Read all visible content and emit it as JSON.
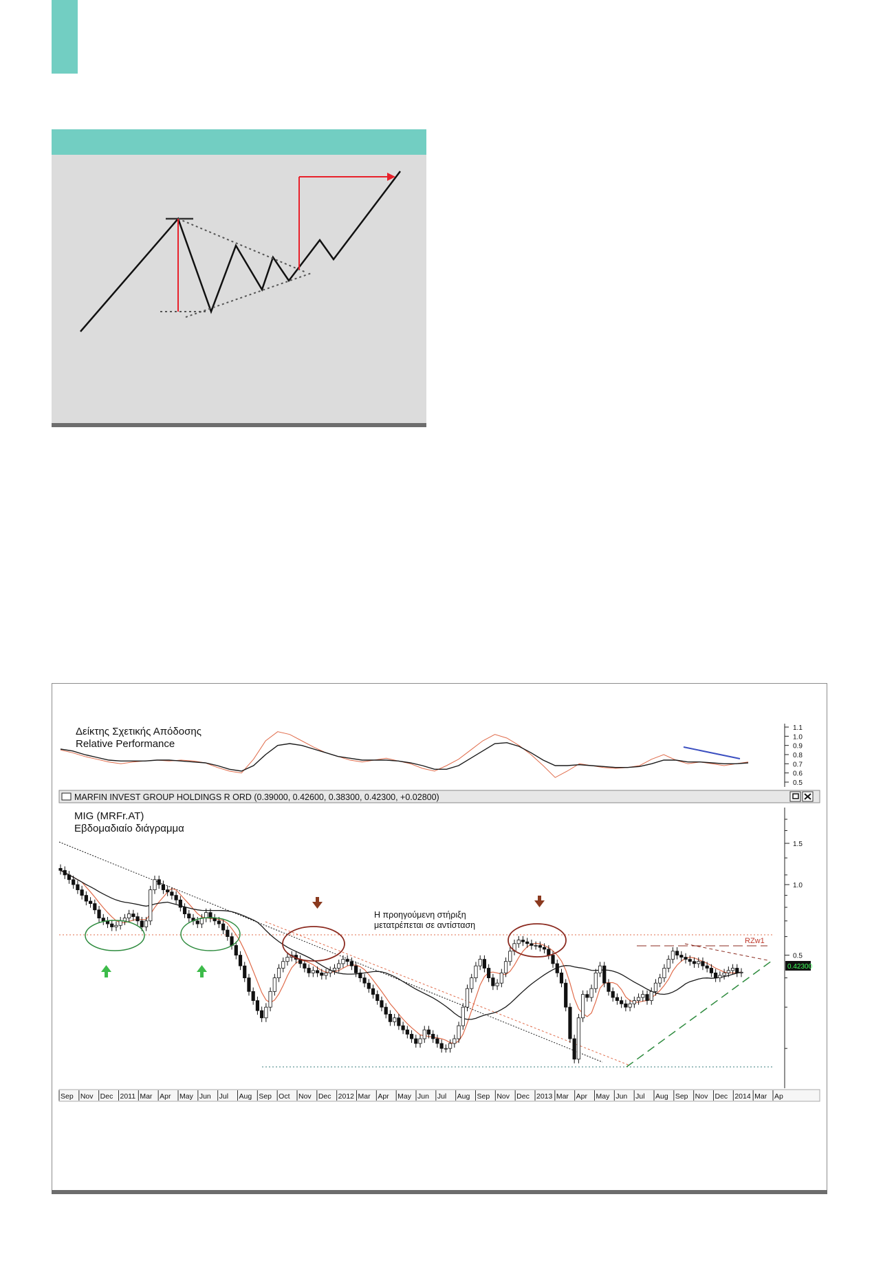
{
  "pattern_figure": {
    "colors": {
      "header": "#72cec2",
      "background": "#dcdcdc",
      "price_line": "#111111",
      "measure": "#e8202a"
    }
  },
  "chart_data": [
    {
      "type": "line",
      "title": "Δείκτης Σχετικής Απόδοσης",
      "subtitle": "Relative Performance",
      "y_ticks": [
        "1.1",
        "1.0",
        "0.9",
        "0.8",
        "0.7",
        "0.6",
        "0.5"
      ],
      "ylim": [
        0.5,
        1.1
      ],
      "series": [
        {
          "values": [
            0.85,
            0.82,
            0.78,
            0.75,
            0.72,
            0.7,
            0.72,
            0.73,
            0.74,
            0.73,
            0.74,
            0.73,
            0.71,
            0.66,
            0.62,
            0.6,
            0.75,
            0.95,
            1.05,
            1.02,
            0.95,
            0.88,
            0.82,
            0.78,
            0.74,
            0.72,
            0.74,
            0.76,
            0.73,
            0.7,
            0.65,
            0.62,
            0.68,
            0.75,
            0.85,
            0.95,
            1.02,
            0.98,
            0.9,
            0.8,
            0.68,
            0.55,
            0.62,
            0.7,
            0.68,
            0.66,
            0.65,
            0.66,
            0.68,
            0.75,
            0.8,
            0.74,
            0.7,
            0.72,
            0.7,
            0.68,
            0.7,
            0.72
          ],
          "color": "#e06b4a"
        },
        {
          "values": [
            0.86,
            0.84,
            0.8,
            0.77,
            0.74,
            0.73,
            0.73,
            0.73,
            0.74,
            0.74,
            0.73,
            0.72,
            0.71,
            0.68,
            0.64,
            0.62,
            0.68,
            0.8,
            0.9,
            0.92,
            0.9,
            0.86,
            0.82,
            0.78,
            0.76,
            0.74,
            0.74,
            0.74,
            0.73,
            0.71,
            0.68,
            0.64,
            0.64,
            0.68,
            0.76,
            0.84,
            0.92,
            0.93,
            0.89,
            0.82,
            0.74,
            0.68,
            0.68,
            0.69,
            0.68,
            0.67,
            0.66,
            0.66,
            0.67,
            0.7,
            0.74,
            0.74,
            0.72,
            0.72,
            0.71,
            0.7,
            0.7,
            0.71
          ],
          "color": "#1a1a1a"
        }
      ],
      "annotation_line_color": "#3b4fc0"
    },
    {
      "type": "candlestick",
      "header": "MARFIN INVEST GROUP HOLDINGS R ORD (0.39000, 0.42600, 0.38300, 0.42300, +0.02800)",
      "title": "MIG (MRFr.AT)",
      "subtitle": "Εβδομαδιαίο διάγραμμα",
      "y_ticks": [
        "1.5",
        "1.0",
        "0.5"
      ],
      "last_price": "0.42300",
      "x_ticks": [
        "Sep",
        "Nov",
        "Dec",
        "2011",
        "Mar",
        "Apr",
        "May",
        "Jun",
        "Jul",
        "Aug",
        "Sep",
        "Oct",
        "Nov",
        "Dec",
        "2012",
        "Mar",
        "Apr",
        "May",
        "Jun",
        "Jul",
        "Aug",
        "Sep",
        "Nov",
        "Dec",
        "2013",
        "Mar",
        "Apr",
        "May",
        "Jun",
        "Jul",
        "Aug",
        "Sep",
        "Nov",
        "Dec",
        "2014",
        "Mar",
        "Ap"
      ],
      "annotation_text_line1": "Η προηγούμενη στήριξη",
      "annotation_text_line2": "μετατρέπεται σε αντίσταση",
      "resistance_label": "RZw1",
      "close_series": [
        1.15,
        1.1,
        1.05,
        1.0,
        0.95,
        0.9,
        0.85,
        0.83,
        0.78,
        0.72,
        0.7,
        0.68,
        0.66,
        0.67,
        0.7,
        0.72,
        0.75,
        0.73,
        0.7,
        0.66,
        0.7,
        0.95,
        1.05,
        1.0,
        0.95,
        0.93,
        0.9,
        0.86,
        0.8,
        0.75,
        0.72,
        0.7,
        0.68,
        0.72,
        0.76,
        0.72,
        0.7,
        0.68,
        0.64,
        0.6,
        0.55,
        0.5,
        0.45,
        0.4,
        0.35,
        0.32,
        0.29,
        0.27,
        0.3,
        0.35,
        0.4,
        0.44,
        0.47,
        0.49,
        0.5,
        0.48,
        0.46,
        0.44,
        0.42,
        0.43,
        0.42,
        0.41,
        0.42,
        0.43,
        0.44,
        0.46,
        0.48,
        0.47,
        0.45,
        0.42,
        0.4,
        0.38,
        0.36,
        0.34,
        0.32,
        0.3,
        0.28,
        0.26,
        0.27,
        0.25,
        0.24,
        0.23,
        0.22,
        0.21,
        0.22,
        0.24,
        0.23,
        0.22,
        0.21,
        0.2,
        0.2,
        0.21,
        0.22,
        0.25,
        0.3,
        0.36,
        0.4,
        0.45,
        0.48,
        0.44,
        0.4,
        0.37,
        0.38,
        0.42,
        0.47,
        0.52,
        0.56,
        0.58,
        0.57,
        0.56,
        0.55,
        0.55,
        0.54,
        0.53,
        0.5,
        0.46,
        0.42,
        0.38,
        0.3,
        0.22,
        0.18,
        0.27,
        0.34,
        0.33,
        0.36,
        0.42,
        0.45,
        0.38,
        0.35,
        0.33,
        0.32,
        0.31,
        0.3,
        0.31,
        0.32,
        0.33,
        0.34,
        0.32,
        0.35,
        0.38,
        0.4,
        0.44,
        0.48,
        0.52,
        0.5,
        0.49,
        0.48,
        0.47,
        0.46,
        0.47,
        0.45,
        0.44,
        0.42,
        0.4,
        0.41,
        0.42,
        0.43,
        0.44,
        0.42,
        0.423
      ],
      "colors": {
        "up": "#ffffff",
        "down": "#111111",
        "ma_short": "#e06b4a",
        "ma_long": "#1a1a1a",
        "resistance": "#e06b4a",
        "support": "#3a7d7d",
        "trend_up": "#2e8b3e",
        "circle_green": "#2e8b3e",
        "circle_brown": "#8b2a1f",
        "arrow_green": "#3dbb4a",
        "arrow_brown": "#8b3a1f"
      }
    }
  ]
}
